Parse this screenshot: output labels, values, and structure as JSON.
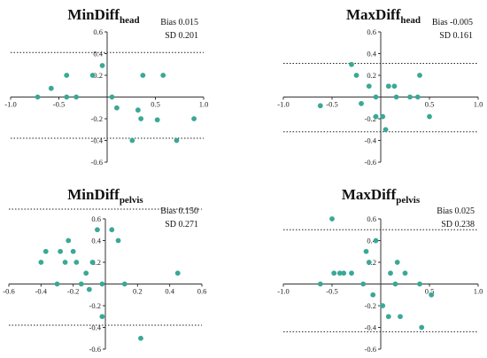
{
  "charts": [
    {
      "id": "min-diff-head",
      "type": "scatter",
      "title": "MinDiff",
      "title_sub": "head",
      "stats": [
        "Bias 0.015",
        "SD 0.201"
      ],
      "xlim": [
        -1.0,
        1.0
      ],
      "ylim": [
        -0.6,
        0.6
      ],
      "x_ticks": [
        -1.0,
        -0.5,
        0.5,
        1.0
      ],
      "x_tick_labels": [
        "-1.0",
        "-0.5",
        "0.5",
        "1.0"
      ],
      "y_ticks": [
        -0.6,
        -0.4,
        -0.2,
        0.2,
        0.4,
        0.6
      ],
      "y_tick_labels": [
        "-0.6",
        "-0.4",
        "-0.2",
        "0.2",
        "0.4",
        "0.6"
      ],
      "limits": [
        0.41,
        -0.38
      ],
      "points": [
        [
          -0.72,
          0.0
        ],
        [
          -0.58,
          0.08
        ],
        [
          -0.42,
          0.2
        ],
        [
          -0.42,
          0.0
        ],
        [
          -0.32,
          0.0
        ],
        [
          -0.15,
          0.2
        ],
        [
          -0.05,
          0.29
        ],
        [
          0.05,
          0.0
        ],
        [
          0.1,
          -0.1
        ],
        [
          0.32,
          -0.12
        ],
        [
          0.35,
          -0.2
        ],
        [
          0.37,
          0.2
        ],
        [
          0.52,
          -0.21
        ],
        [
          0.58,
          0.2
        ],
        [
          0.26,
          -0.4
        ],
        [
          0.72,
          -0.4
        ],
        [
          0.9,
          -0.2
        ]
      ]
    },
    {
      "id": "max-diff-head",
      "type": "scatter",
      "title": "MaxDiff",
      "title_sub": "head",
      "stats": [
        "Bias -0.005",
        "SD 0.161"
      ],
      "xlim": [
        -1.0,
        1.0
      ],
      "ylim": [
        -0.6,
        0.6
      ],
      "x_ticks": [
        -1.0,
        -0.5,
        0.5,
        1.0
      ],
      "x_tick_labels": [
        "-1.0",
        "-0.5",
        "0.5",
        "1.0"
      ],
      "y_ticks": [
        -0.6,
        -0.4,
        -0.2,
        0.2,
        0.4,
        0.6
      ],
      "y_tick_labels": [
        "-0.6",
        "-0.4",
        "-0.2",
        "0.2",
        "0.4",
        "0.6"
      ],
      "limits": [
        0.31,
        -0.32
      ],
      "points": [
        [
          -0.62,
          -0.08
        ],
        [
          -0.3,
          0.3
        ],
        [
          -0.25,
          0.2
        ],
        [
          -0.2,
          -0.06
        ],
        [
          -0.12,
          0.1
        ],
        [
          -0.05,
          0.0
        ],
        [
          -0.05,
          -0.18
        ],
        [
          0.02,
          -0.18
        ],
        [
          0.05,
          -0.3
        ],
        [
          0.08,
          0.1
        ],
        [
          0.14,
          0.1
        ],
        [
          0.16,
          0.0
        ],
        [
          0.3,
          0.0
        ],
        [
          0.38,
          0.0
        ],
        [
          0.4,
          0.2
        ],
        [
          0.5,
          -0.18
        ]
      ]
    },
    {
      "id": "min-diff-pelvis",
      "type": "scatter",
      "title": "MinDiff",
      "title_sub": "pelvis",
      "stats": [
        "Bias 0.150",
        "SD 0.271"
      ],
      "xlim": [
        -0.6,
        0.6
      ],
      "ylim": [
        -0.6,
        0.6
      ],
      "x_ticks": [
        -0.6,
        -0.4,
        -0.2,
        0.2,
        0.4,
        0.6
      ],
      "x_tick_labels": [
        "-0.6",
        "-0.4",
        "-0.2",
        "0.2",
        "0.4",
        "0.6"
      ],
      "y_ticks": [
        -0.6,
        -0.4,
        -0.2,
        0.2,
        0.4,
        0.6
      ],
      "y_tick_labels": [
        "-0.6",
        "-0.4",
        "-0.2",
        "0.2",
        "0.4",
        "0.6"
      ],
      "limits": [
        0.69,
        -0.38
      ],
      "points": [
        [
          -0.4,
          0.2
        ],
        [
          -0.37,
          0.3
        ],
        [
          -0.3,
          0.0
        ],
        [
          -0.28,
          0.3
        ],
        [
          -0.25,
          0.2
        ],
        [
          -0.23,
          0.4
        ],
        [
          -0.2,
          0.3
        ],
        [
          -0.18,
          0.2
        ],
        [
          -0.15,
          0.0
        ],
        [
          -0.12,
          0.1
        ],
        [
          -0.1,
          -0.05
        ],
        [
          -0.08,
          0.2
        ],
        [
          -0.02,
          0.0
        ],
        [
          0.04,
          0.5
        ],
        [
          0.08,
          0.4
        ],
        [
          0.12,
          0.0
        ],
        [
          0.22,
          -0.5
        ],
        [
          0.45,
          0.1
        ],
        [
          -0.02,
          -0.3
        ],
        [
          -0.05,
          0.5
        ]
      ]
    },
    {
      "id": "max-diff-pelvis",
      "type": "scatter",
      "title": "MaxDiff",
      "title_sub": "pelvis",
      "stats": [
        "Bias 0.025",
        "SD 0.238"
      ],
      "xlim": [
        -1.0,
        1.0
      ],
      "ylim": [
        -0.6,
        0.6
      ],
      "x_ticks": [
        -1.0,
        -0.5,
        0.5,
        1.0
      ],
      "x_tick_labels": [
        "-1.0",
        "-0.5",
        "0.5",
        "1.0"
      ],
      "y_ticks": [
        -0.6,
        -0.4,
        -0.2,
        0.2,
        0.4,
        0.6
      ],
      "y_tick_labels": [
        "-0.6",
        "-0.4",
        "-0.2",
        "0.2",
        "0.4",
        "0.6"
      ],
      "limits": [
        0.5,
        -0.44
      ],
      "points": [
        [
          -0.62,
          0.0
        ],
        [
          -0.5,
          0.6
        ],
        [
          -0.48,
          0.1
        ],
        [
          -0.42,
          0.1
        ],
        [
          -0.38,
          0.1
        ],
        [
          -0.3,
          0.1
        ],
        [
          -0.18,
          0.0
        ],
        [
          -0.15,
          0.3
        ],
        [
          -0.12,
          0.2
        ],
        [
          -0.08,
          -0.1
        ],
        [
          -0.05,
          0.4
        ],
        [
          0.02,
          -0.2
        ],
        [
          0.08,
          -0.3
        ],
        [
          0.1,
          0.1
        ],
        [
          0.15,
          0.0
        ],
        [
          0.17,
          0.2
        ],
        [
          0.2,
          -0.3
        ],
        [
          0.25,
          0.1
        ],
        [
          0.4,
          0.0
        ],
        [
          0.42,
          -0.4
        ],
        [
          0.52,
          -0.1
        ]
      ]
    }
  ]
}
